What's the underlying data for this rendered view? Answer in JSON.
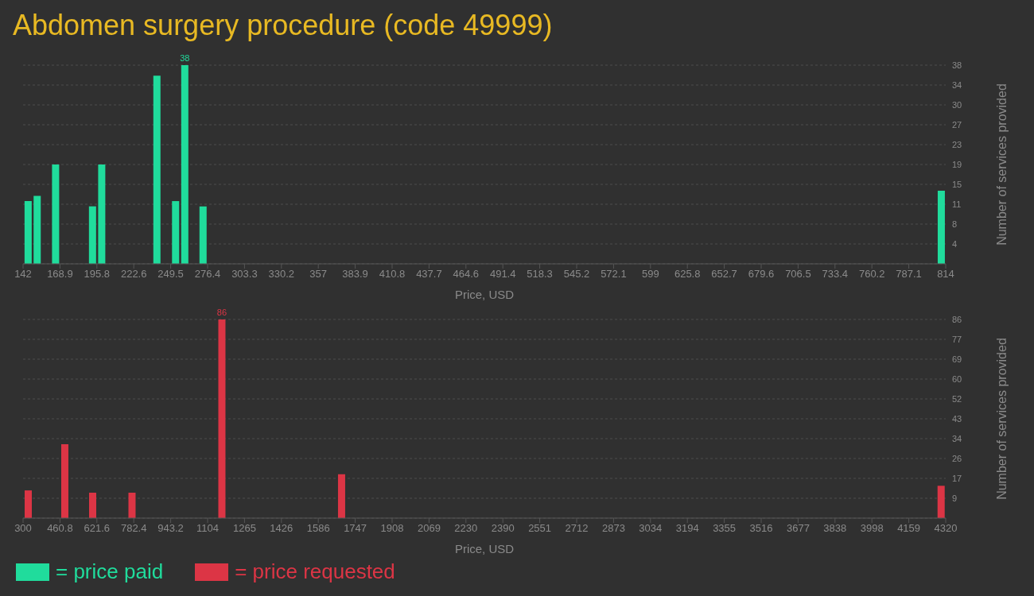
{
  "chart_data": [
    {
      "type": "bar",
      "title": "Abdomen surgery procedure (code 49999)",
      "xlabel": "Price, USD",
      "ylabel": "Number of services provided",
      "x": [
        145.8,
        152.4,
        165.8,
        192.7,
        199.4,
        239.6,
        253.2,
        259.9,
        273.2,
        810.9
      ],
      "series": [
        {
          "name": "= price paid",
          "color": "#20dc9c",
          "values": [
            12,
            13,
            19,
            11,
            19,
            36,
            12,
            38,
            11,
            14
          ],
          "value_labels": [
            null,
            null,
            null,
            null,
            null,
            null,
            null,
            "38",
            null,
            null
          ]
        }
      ],
      "xlim": [
        142,
        814
      ],
      "xticks": [
        142,
        {
          "value": 168.88,
          "label": "168.9"
        },
        {
          "value": 195.76,
          "label": "195.8"
        },
        {
          "value": 222.64,
          "label": "222.6"
        },
        {
          "value": 249.52,
          "label": "249.5"
        },
        276.4,
        {
          "value": 303.28,
          "label": "303.3"
        },
        {
          "value": 330.16,
          "label": "330.2"
        },
        {
          "value": 357.04,
          "label": "357"
        },
        {
          "value": 383.92,
          "label": "383.9"
        },
        410.8,
        {
          "value": 437.68,
          "label": "437.7"
        },
        {
          "value": 464.56,
          "label": "464.6"
        },
        {
          "value": 491.44,
          "label": "491.4"
        },
        {
          "value": 518.32,
          "label": "518.3"
        },
        545.2,
        {
          "value": 572.08,
          "label": "572.1"
        },
        {
          "value": 598.96,
          "label": "599"
        },
        {
          "value": 625.84,
          "label": "625.8"
        },
        {
          "value": 652.72,
          "label": "652.7"
        },
        679.6,
        {
          "value": 706.48,
          "label": "706.5"
        },
        {
          "value": 733.36,
          "label": "733.4"
        },
        {
          "value": 760.24,
          "label": "760.2"
        },
        {
          "value": 787.12,
          "label": "787.1"
        },
        814
      ],
      "ylim": [
        0,
        38
      ],
      "yticks": [
        {
          "value": 3.8,
          "label": "4"
        },
        {
          "value": 7.6,
          "label": "8"
        },
        {
          "value": 11.4,
          "label": "11"
        },
        {
          "value": 15.2,
          "label": "15"
        },
        {
          "value": 19,
          "label": "19"
        },
        {
          "value": 22.8,
          "label": "23"
        },
        {
          "value": 26.6,
          "label": "27"
        },
        {
          "value": 30.4,
          "label": "30"
        },
        {
          "value": 34.2,
          "label": "34"
        },
        38
      ],
      "grid": "y",
      "legend": "bottom left"
    },
    {
      "type": "bar",
      "xlabel": "Price, USD",
      "ylabel": "Number of services provided",
      "x": [
        322.5,
        481.9,
        603.2,
        774.7,
        1166.3,
        1687.8,
        4300
      ],
      "series": [
        {
          "name": "= price requested",
          "color": "#dc3545",
          "values": [
            12,
            32,
            11,
            11,
            86,
            19,
            14
          ],
          "value_labels": [
            null,
            null,
            null,
            null,
            "86",
            null,
            null
          ]
        }
      ],
      "xlim": [
        300,
        4320
      ],
      "xticks": [
        300,
        460.8,
        621.6,
        782.4,
        943.2,
        1104,
        {
          "value": 1264.8,
          "label": "1265"
        },
        {
          "value": 1425.6,
          "label": "1426"
        },
        {
          "value": 1586.4,
          "label": "1586"
        },
        {
          "value": 1747.2,
          "label": "1747"
        },
        1908,
        {
          "value": 2068.8,
          "label": "2069"
        },
        {
          "value": 2229.6,
          "label": "2230"
        },
        {
          "value": 2390.4,
          "label": "2390"
        },
        {
          "value": 2551.2,
          "label": "2551"
        },
        2712,
        {
          "value": 2872.8,
          "label": "2873"
        },
        {
          "value": 3033.6,
          "label": "3034"
        },
        {
          "value": 3194.4,
          "label": "3194"
        },
        {
          "value": 3355.2,
          "label": "3355"
        },
        3516,
        {
          "value": 3676.8,
          "label": "3677"
        },
        {
          "value": 3837.6,
          "label": "3838"
        },
        {
          "value": 3998.4,
          "label": "3998"
        },
        {
          "value": 4159.2,
          "label": "4159"
        },
        4320
      ],
      "ylim": [
        0,
        86
      ],
      "yticks": [
        {
          "value": 8.6,
          "label": "9"
        },
        {
          "value": 17.2,
          "label": "17"
        },
        {
          "value": 25.8,
          "label": "26"
        },
        {
          "value": 34.4,
          "label": "34"
        },
        43,
        {
          "value": 51.6,
          "label": "52"
        },
        {
          "value": 60.2,
          "label": "60"
        },
        {
          "value": 68.8,
          "label": "69"
        },
        {
          "value": 77.4,
          "label": "77"
        },
        86
      ],
      "grid": "y",
      "legend": "bottom left"
    }
  ]
}
